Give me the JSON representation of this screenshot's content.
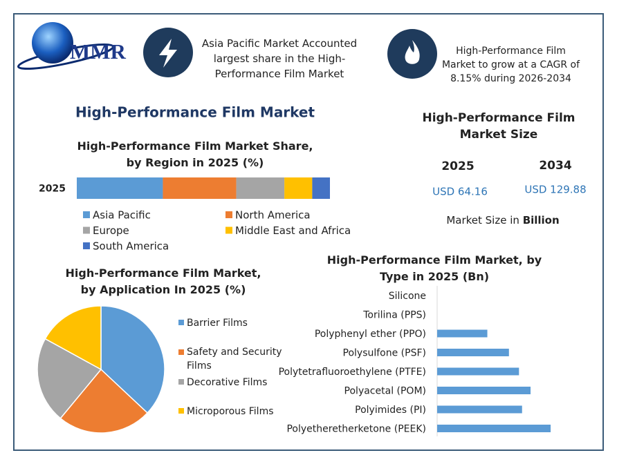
{
  "header": {
    "logo": "MMR",
    "note_1": "Asia Pacific Market Accounted largest share in the High-Performance Film Market",
    "note_2": "High-Performance Film Market to grow at a CAGR of 8.15% during 2026-2034"
  },
  "title": "High-Performance Film Market",
  "market_size": {
    "title": "High-Performance Film Market Size",
    "years": [
      "2025",
      "2034"
    ],
    "values": [
      "USD 64.16",
      "USD 129.88"
    ],
    "unit_prefix": "Market Size in",
    "unit": "Billion"
  },
  "chart_data": [
    {
      "type": "stacked-bar",
      "title": "High-Performance Film Market Share, by Region in 2025 (%)",
      "categories": [
        "2025"
      ],
      "series": [
        {
          "name": "Asia Pacific",
          "color": "#5b9bd5",
          "values": [
            34
          ]
        },
        {
          "name": "North America",
          "color": "#ed7d31",
          "values": [
            29
          ]
        },
        {
          "name": "Europe",
          "color": "#a5a5a5",
          "values": [
            19
          ]
        },
        {
          "name": "Middle East and Africa",
          "color": "#ffc000",
          "values": [
            11
          ]
        },
        {
          "name": "South America",
          "color": "#4472c4",
          "values": [
            7
          ]
        }
      ]
    },
    {
      "type": "pie",
      "title": "High-Performance Film Market, by Application In 2025 (%)",
      "categories": [
        "Barrier Films",
        "Safety and Security Films",
        "Decorative Films",
        "Microporous Films"
      ],
      "values": [
        37,
        24,
        22,
        17
      ],
      "colors": [
        "#5b9bd5",
        "#ed7d31",
        "#a5a5a5",
        "#ffc000"
      ]
    },
    {
      "type": "hbar",
      "title": "High-Performance Film Market, by Type in 2025 (Bn)",
      "categories": [
        "Silicone",
        "Torilina (PPS)",
        "Polyphenyl ether (PPO)",
        "Polysulfone (PSF)",
        "Polytetrafluoroethylene (PTFE)",
        "Polyacetal (POM)",
        "Polyimides (PI)",
        "Polyetheretherketone (PEEK)"
      ],
      "values": [
        0,
        0,
        6.5,
        9.3,
        10.6,
        12.1,
        11.0,
        14.7
      ],
      "color": "#5b9bd5"
    }
  ]
}
